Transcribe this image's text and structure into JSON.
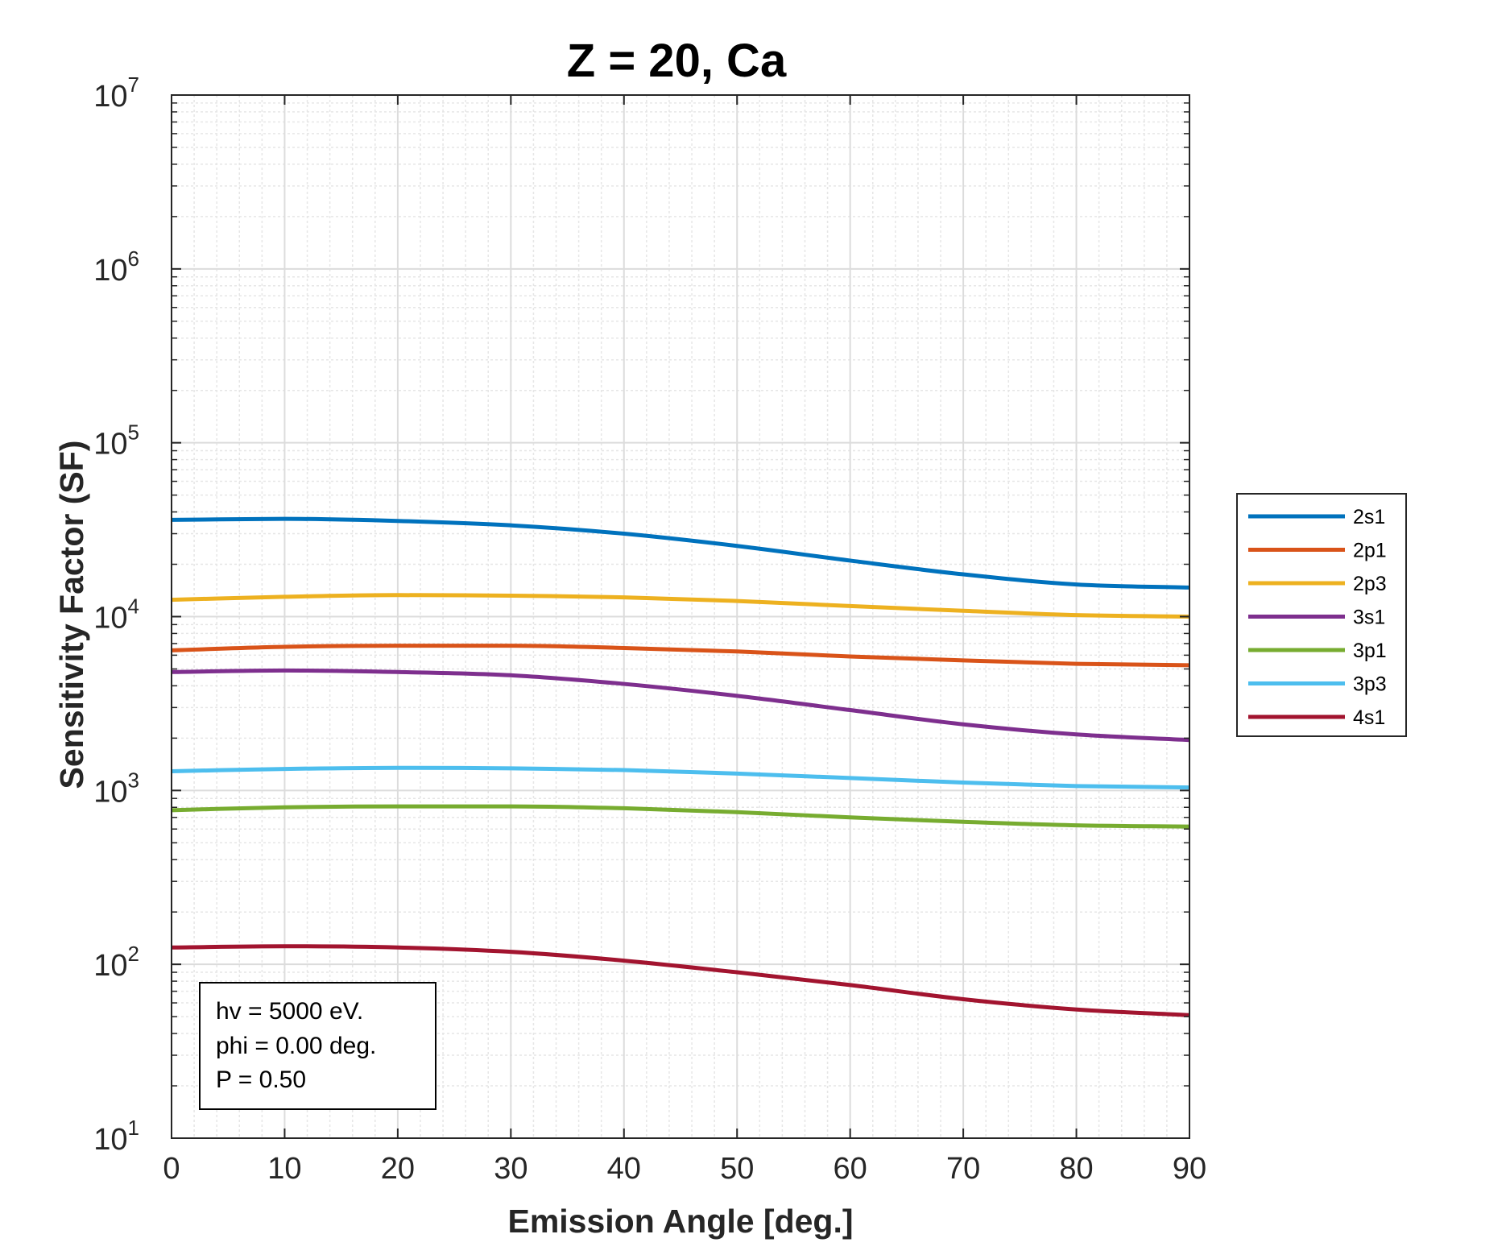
{
  "chart_data": {
    "type": "line",
    "title": "Z = 20, Ca",
    "xlabel": "Emission Angle [deg.]",
    "ylabel": "Sensitivity Factor (SF)",
    "xlim": [
      0,
      90
    ],
    "ylim": [
      10,
      10000000
    ],
    "yscale": "log",
    "grid": true,
    "minor_grid": true,
    "legend_position": "outside-right",
    "x_ticks": [
      "0",
      "10",
      "20",
      "30",
      "40",
      "50",
      "60",
      "70",
      "80",
      "90"
    ],
    "y_ticks": [
      {
        "base": "10",
        "exp": "1"
      },
      {
        "base": "10",
        "exp": "2"
      },
      {
        "base": "10",
        "exp": "3"
      },
      {
        "base": "10",
        "exp": "4"
      },
      {
        "base": "10",
        "exp": "5"
      },
      {
        "base": "10",
        "exp": "6"
      },
      {
        "base": "10",
        "exp": "7"
      }
    ],
    "x": [
      0,
      10,
      20,
      30,
      40,
      50,
      60,
      70,
      80,
      90
    ],
    "series": [
      {
        "name": "2s1",
        "color": "#0072BD",
        "values": [
          36000,
          36500,
          35500,
          33500,
          30000,
          25500,
          21000,
          17500,
          15300,
          14700
        ]
      },
      {
        "name": "2p1",
        "color": "#D95319",
        "values": [
          6400,
          6700,
          6800,
          6800,
          6600,
          6300,
          5900,
          5600,
          5350,
          5250
        ]
      },
      {
        "name": "2p3",
        "color": "#EDB120",
        "values": [
          12500,
          13000,
          13300,
          13200,
          12900,
          12300,
          11500,
          10800,
          10200,
          10000
        ]
      },
      {
        "name": "3s1",
        "color": "#7E2F8E",
        "values": [
          4800,
          4900,
          4800,
          4600,
          4100,
          3500,
          2900,
          2400,
          2100,
          1950
        ]
      },
      {
        "name": "3p1",
        "color": "#77AC30",
        "values": [
          770,
          800,
          810,
          810,
          790,
          750,
          700,
          660,
          630,
          620
        ]
      },
      {
        "name": "3p3",
        "color": "#4DBEEE",
        "values": [
          1290,
          1330,
          1350,
          1340,
          1310,
          1250,
          1180,
          1110,
          1060,
          1040
        ]
      },
      {
        "name": "4s1",
        "color": "#A2142F",
        "values": [
          125,
          127,
          125,
          118,
          105,
          90,
          76,
          63,
          55,
          51
        ]
      }
    ],
    "annotation": [
      "hv = 5000 eV.",
      "phi = 0.00 deg.",
      "P = 0.50"
    ]
  }
}
